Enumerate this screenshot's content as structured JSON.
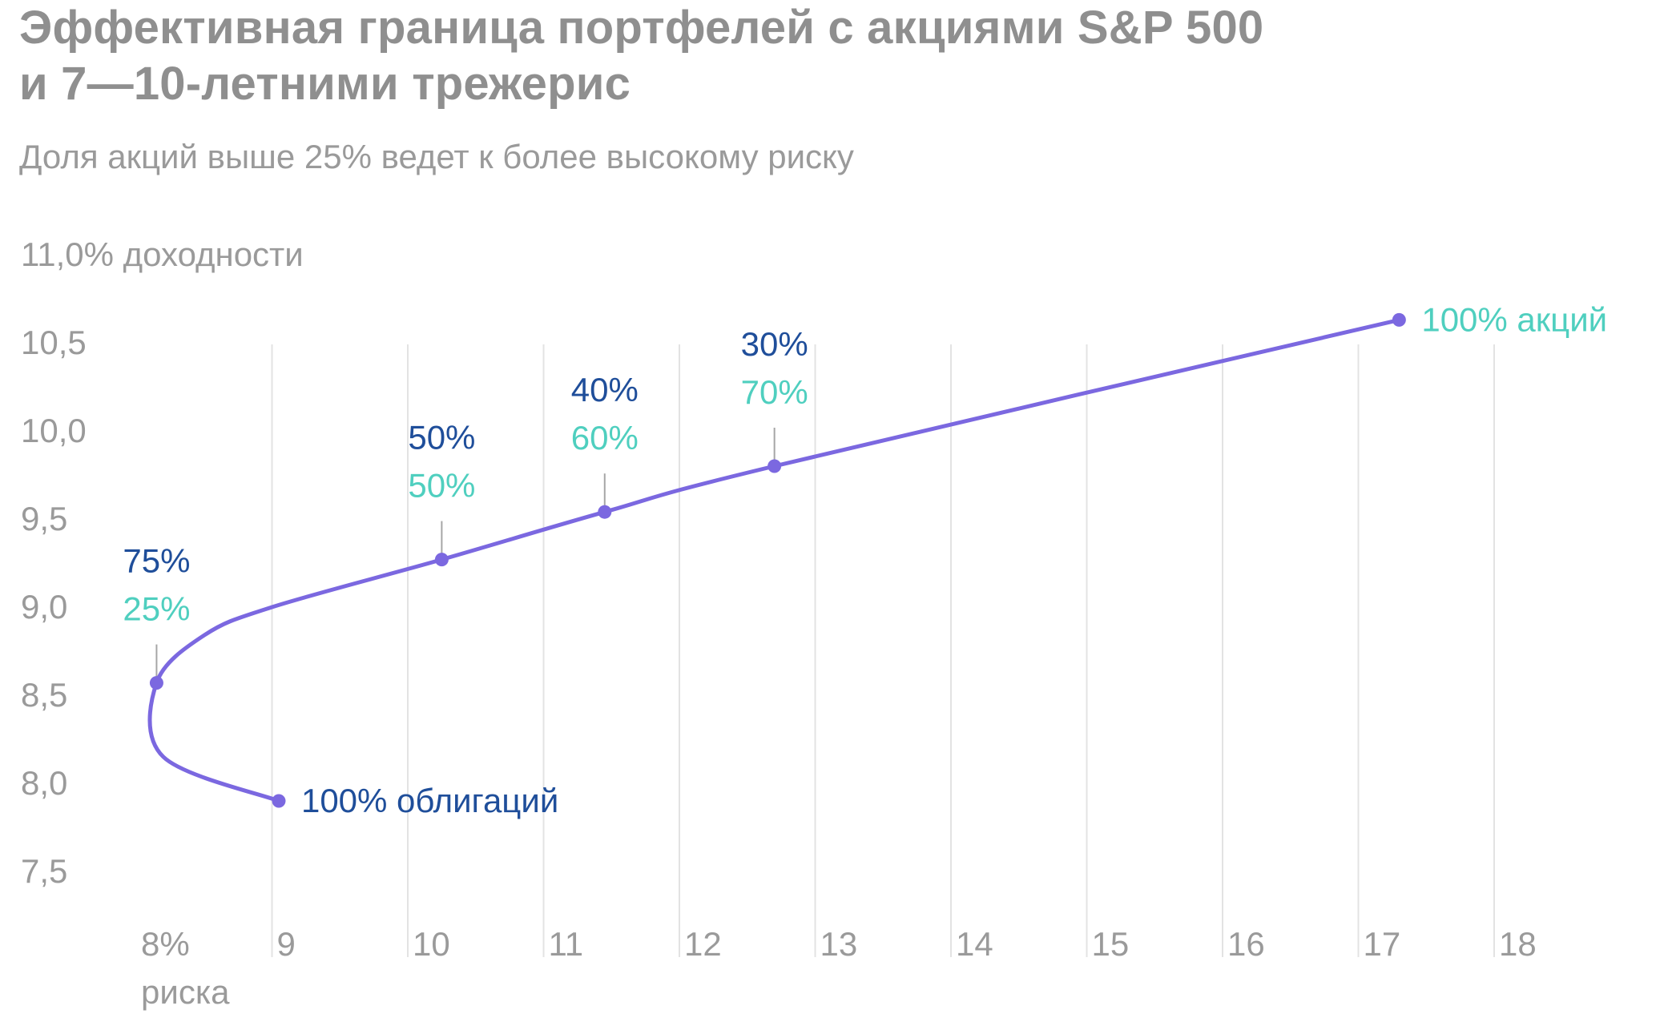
{
  "title_line1": "Эффективная граница портфелей с акциями S&P 500",
  "title_line2": "и 7—10-летними трежерис",
  "subtitle": "Доля акций выше 25% ведет к более высокому риску",
  "colors": {
    "line": "#7b68e0",
    "stocks_label": "#4fcfbf",
    "bonds_label": "#1f4e9a",
    "grid": "#e3e3e3",
    "text_muted": "#9a9a9a",
    "title": "#8f8f8f"
  },
  "chart_data": {
    "type": "line",
    "title": "Эффективная граница портфелей с акциями S&P 500 и 7—10-летними трежерис",
    "subtitle": "Доля акций выше 25% ведет к более высокому риску",
    "xlabel": "риска",
    "ylabel": "доходности",
    "xlim": [
      8,
      18
    ],
    "ylim": [
      7.5,
      11.0
    ],
    "grid": "vertical",
    "x_ticks": [
      {
        "value": 8,
        "label": "8%"
      },
      {
        "value": 9,
        "label": "9"
      },
      {
        "value": 10,
        "label": "10"
      },
      {
        "value": 11,
        "label": "11"
      },
      {
        "value": 12,
        "label": "12"
      },
      {
        "value": 13,
        "label": "13"
      },
      {
        "value": 14,
        "label": "14"
      },
      {
        "value": 15,
        "label": "15"
      },
      {
        "value": 16,
        "label": "16"
      },
      {
        "value": 17,
        "label": "17"
      },
      {
        "value": 18,
        "label": "18"
      }
    ],
    "y_ticks": [
      {
        "value": 11.0,
        "label": "11,0% доходности"
      },
      {
        "value": 10.5,
        "label": "10,5"
      },
      {
        "value": 10.0,
        "label": "10,0"
      },
      {
        "value": 9.5,
        "label": "9,5"
      },
      {
        "value": 9.0,
        "label": "9,0"
      },
      {
        "value": 8.5,
        "label": "8,5"
      },
      {
        "value": 8.0,
        "label": "8,0"
      },
      {
        "value": 7.5,
        "label": "7,5"
      }
    ],
    "series": [
      {
        "points": [
          {
            "x": 9.05,
            "y": 7.9
          },
          {
            "x": 8.2,
            "y": 8.15
          },
          {
            "x": 8.15,
            "y": 8.57
          },
          {
            "x": 8.5,
            "y": 8.84
          },
          {
            "x": 9.0,
            "y": 9.0
          },
          {
            "x": 10.25,
            "y": 9.27
          },
          {
            "x": 11.45,
            "y": 9.54
          },
          {
            "x": 12.7,
            "y": 9.8
          },
          {
            "x": 17.3,
            "y": 10.63
          }
        ]
      }
    ],
    "markers": [
      {
        "x": 9.05,
        "y": 7.9,
        "label": "100% облигаций",
        "label_color": "bonds"
      },
      {
        "x": 8.15,
        "y": 8.57,
        "bonds": "75%",
        "stocks": "25%"
      },
      {
        "x": 10.25,
        "y": 9.27,
        "bonds": "50%",
        "stocks": "50%"
      },
      {
        "x": 11.45,
        "y": 9.54,
        "bonds": "40%",
        "stocks": "60%"
      },
      {
        "x": 12.7,
        "y": 9.8,
        "bonds": "30%",
        "stocks": "70%"
      },
      {
        "x": 17.3,
        "y": 10.63,
        "label": "100% акций",
        "label_color": "stocks"
      }
    ]
  }
}
